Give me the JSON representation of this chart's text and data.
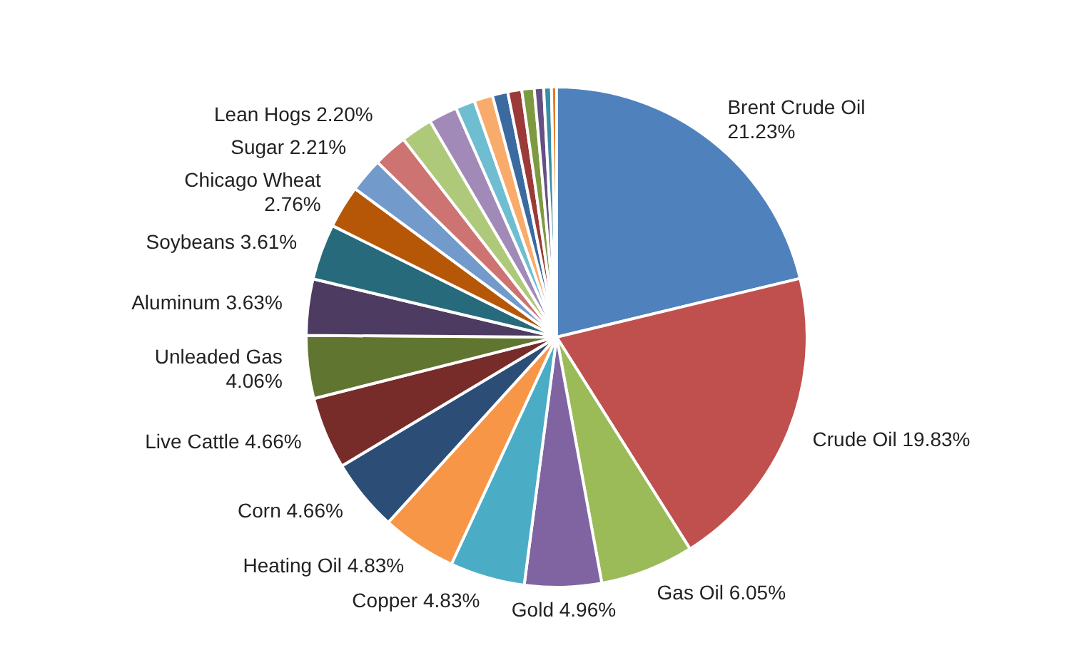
{
  "chart_data": {
    "type": "pie",
    "categories": [
      "Brent Crude Oil",
      "Crude Oil",
      "Gas Oil",
      "Gold",
      "Copper",
      "Heating Oil",
      "Corn",
      "Live Cattle",
      "Unleaded Gas",
      "Aluminum",
      "Soybeans",
      "Chicago Wheat",
      "Sugar",
      "Lean Hogs",
      null,
      null,
      null,
      null,
      null,
      null,
      null,
      null,
      null,
      null
    ],
    "values": [
      21.23,
      19.83,
      6.05,
      4.96,
      4.83,
      4.83,
      4.66,
      4.66,
      4.06,
      3.63,
      3.61,
      2.76,
      2.21,
      2.2,
      2.05,
      1.85,
      1.25,
      1.2,
      1.0,
      0.9,
      0.8,
      0.6,
      0.5,
      0.33
    ],
    "value_labels": [
      "21.23%",
      "19.83%",
      "6.05%",
      "4.96%",
      "4.83%",
      "4.83%",
      "4.66%",
      "4.66%",
      "4.06%",
      "3.63%",
      "3.61%",
      "2.76%",
      "2.21%",
      "2.20%",
      null,
      null,
      null,
      null,
      null,
      null,
      null,
      null,
      null,
      null
    ],
    "colors": [
      "#4f81bd",
      "#c0504d",
      "#9bbb59",
      "#8064a2",
      "#4bacc6",
      "#f79646",
      "#2c4d75",
      "#772c2a",
      "#5f7530",
      "#4d3b62",
      "#276a7c",
      "#b65708",
      "#729aca",
      "#cd7371",
      "#afc97a",
      "#a18ab8",
      "#6fbdd1",
      "#f9ab6b",
      "#3a6aa0",
      "#9b3a38",
      "#7e9a40",
      "#664f83",
      "#3a8fa6",
      "#e07c26"
    ],
    "legend": false
  }
}
